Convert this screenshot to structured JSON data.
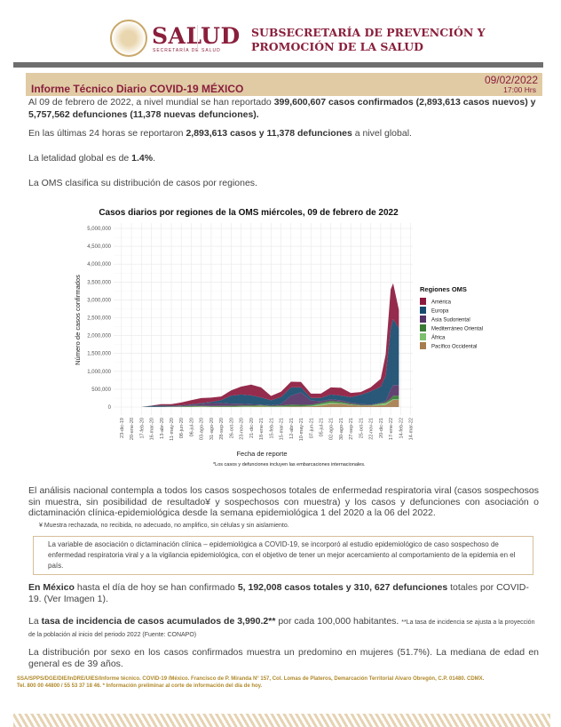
{
  "header": {
    "brand": "SALUD",
    "brand_sub": "SECRETARÍA DE SALUD",
    "subsecretaria_line1": "SUBSECRETARÍA DE PREVENCIÓN Y",
    "subsecretaria_line2": "PROMOCIÓN DE LA SALUD"
  },
  "report": {
    "title": "Informe Técnico Diario COVID-19 MÉXICO",
    "date": "09/02/2022",
    "time": "17:00 Hrs"
  },
  "paragraphs": {
    "p1_a": "Al 09 de febrero de 2022, a nivel mundial se han reportado ",
    "p1_b": "399,600,607 casos confirmados (2,893,613 casos nuevos) y 5,757,562 defunciones (11,378 nuevas defunciones).",
    "p2_a": "En las últimas 24 horas se reportaron ",
    "p2_b": "2,893,613 casos y 11,378 defunciones",
    "p2_c": " a nivel global.",
    "p3_a": "La letalidad global es de ",
    "p3_b": "1.4%",
    "p3_c": ".",
    "p4": "La OMS clasifica su distribución de casos por regiones.",
    "p5": "El análisis nacional contempla a todos los casos sospechosos totales de enfermedad respiratoria viral (casos sospechosos sin muestra, sin posibilidad de resultado¥ y sospechosos con muestra) y los casos y defunciones con asociación o dictaminación clínica-epidemiológica desde la semana epidemiológica 1 del 2020 a la 06 del 2022.",
    "p5_note": "¥ Muestra rechazada, no recibida, no adecuado, no amplifico, sin células y sin aislamiento.",
    "box": "La variable de asociación o dictaminación clínica – epidemiológica a COVID-19, se incorporó al estudio epidemiológico de caso sospechoso de enfermedad respiratoria viral y a la vigilancia epidemiológica, con el objetivo de tener un mejor acercamiento al comportamiento de la epidemia en el país.",
    "p6_a": "En México",
    "p6_b": " hasta el día de hoy se han confirmado ",
    "p6_c": "5, 192,008 casos totales y 310, 627 defunciones",
    "p6_d": " totales por COVID-19. (Ver Imagen 1).",
    "p7_a": "La ",
    "p7_b": "tasa de incidencia de casos acumulados de 3,990.2**",
    "p7_c": " por cada 100,000 habitantes. ",
    "p7_note": "**La tasa de incidencia se ajusta a la proyección de la población al inicio del periodo 2022 (Fuente: CONAPO)",
    "p8": "La distribución por sexo en los casos confirmados muestra un predomino en mujeres (51.7%). La mediana de edad en general es de 39 años."
  },
  "footer": {
    "line1": "SSA/SPPS/DGE/DIE/InDRE/UIES/Informe técnico. COVID-19 /México. Francisco de P. Miranda N° 157, Col. Lomas de Plateros, Demarcación Territorial Alvaro Obregón, C.P. 01480. CDMX.",
    "line2": "Tel. 800 00 44800 / 55 53 37 18 46. * Información preliminar al corte de información del día de hoy."
  },
  "chart_data": {
    "type": "area",
    "stacked": true,
    "title": "Casos diarios por regiones de la OMS miércoles, 09 de febrero de 2022",
    "xlabel": "Fecha de reporte",
    "ylabel": "Número de casos confirmados",
    "note": "*Los casos y defunciones incluyen las embarcaciones internacionales.",
    "legend_title": "Regiones OMS",
    "legend_position": "right",
    "grid": true,
    "ylim": [
      0,
      5000000
    ],
    "yticks": [
      0,
      500000,
      1000000,
      1500000,
      2000000,
      2500000,
      3000000,
      3500000,
      4000000,
      4500000,
      5000000
    ],
    "ytick_labels": [
      "0",
      "500,000",
      "1,000,000",
      "1,500,000",
      "2,000,000",
      "2,500,000",
      "3,000,000",
      "3,500,000",
      "4,000,000",
      "4,500,000",
      "5,000,000"
    ],
    "xlim": [
      "2019-12-01",
      "2022-03-20"
    ],
    "xticks": [
      "2019-12-23",
      "2020-01-20",
      "2020-02-17",
      "2020-03-16",
      "2020-04-13",
      "2020-05-11",
      "2020-06-08",
      "2020-07-06",
      "2020-08-03",
      "2020-08-31",
      "2020-09-28",
      "2020-10-26",
      "2020-11-23",
      "2020-12-21",
      "2021-01-18",
      "2021-02-15",
      "2021-03-15",
      "2021-04-12",
      "2021-05-10",
      "2021-06-07",
      "2021-07-05",
      "2021-08-02",
      "2021-08-30",
      "2021-09-27",
      "2021-10-25",
      "2021-11-22",
      "2021-12-20",
      "2022-01-17",
      "2022-02-14",
      "2022-03-14"
    ],
    "xtick_labels": [
      "23-dic-19",
      "20-ene-20",
      "17-feb-20",
      "16-mar-20",
      "13-abr-20",
      "11-may-20",
      "08-jun-20",
      "06-jul-20",
      "03-ago-20",
      "31-ago-20",
      "28-sep-20",
      "26-oct-20",
      "23-nov-20",
      "21-dic-20",
      "18-ene-21",
      "15-feb-21",
      "15-mar-21",
      "12-abr-21",
      "10-may-21",
      "07-jun-21",
      "05-jul-21",
      "02-ago-21",
      "30-ago-21",
      "27-sep-21",
      "25-oct-21",
      "22-nov-21",
      "20-dic-21",
      "17-ene-22",
      "14-feb-22",
      "14-mar-22"
    ],
    "x": [
      "2020-02-17",
      "2020-03-16",
      "2020-04-13",
      "2020-05-11",
      "2020-06-08",
      "2020-07-06",
      "2020-08-03",
      "2020-08-31",
      "2020-09-28",
      "2020-10-26",
      "2020-11-23",
      "2020-12-21",
      "2021-01-18",
      "2021-02-15",
      "2021-03-15",
      "2021-04-12",
      "2021-05-10",
      "2021-06-07",
      "2021-07-05",
      "2021-08-02",
      "2021-08-30",
      "2021-09-27",
      "2021-10-25",
      "2021-11-22",
      "2021-12-20",
      "2022-01-03",
      "2022-01-17",
      "2022-01-24",
      "2022-02-09"
    ],
    "series": [
      {
        "name": "Pacífico Occidental",
        "color": "#a67c4e",
        "values": [
          2000,
          2000,
          2000,
          2000,
          2000,
          3000,
          6000,
          5000,
          4000,
          5000,
          8000,
          10000,
          14000,
          8000,
          6000,
          12000,
          15000,
          20000,
          40000,
          90000,
          90000,
          60000,
          40000,
          40000,
          50000,
          60000,
          150000,
          200000,
          200000
        ]
      },
      {
        "name": "África",
        "color": "#7cbf6e",
        "values": [
          0,
          0,
          1000,
          2000,
          4000,
          10000,
          14000,
          8000,
          6000,
          6000,
          8000,
          12000,
          20000,
          8000,
          8000,
          8000,
          6000,
          15000,
          40000,
          35000,
          20000,
          10000,
          6000,
          6000,
          40000,
          50000,
          30000,
          25000,
          15000
        ]
      },
      {
        "name": "Mediterráneo Oriental",
        "color": "#3b7a35",
        "values": [
          0,
          3000,
          5000,
          8000,
          15000,
          18000,
          15000,
          15000,
          20000,
          25000,
          30000,
          25000,
          18000,
          20000,
          30000,
          50000,
          40000,
          30000,
          35000,
          50000,
          40000,
          25000,
          15000,
          12000,
          15000,
          25000,
          60000,
          90000,
          100000
        ]
      },
      {
        "name": "Asia Sudoriental",
        "color": "#553366",
        "values": [
          0,
          500,
          2000,
          6000,
          12000,
          25000,
          55000,
          85000,
          85000,
          60000,
          45000,
          30000,
          18000,
          14000,
          35000,
          250000,
          350000,
          120000,
          50000,
          45000,
          40000,
          30000,
          20000,
          15000,
          15000,
          40000,
          250000,
          300000,
          300000
        ]
      },
      {
        "name": "Europa",
        "color": "#174a6e",
        "values": [
          0,
          30000,
          35000,
          20000,
          15000,
          18000,
          20000,
          30000,
          80000,
          220000,
          260000,
          250000,
          200000,
          140000,
          200000,
          230000,
          140000,
          70000,
          90000,
          130000,
          130000,
          150000,
          260000,
          370000,
          450000,
          700000,
          1700000,
          1850000,
          1600000
        ]
      },
      {
        "name": "América",
        "color": "#8c1a3e",
        "values": [
          0,
          5000,
          35000,
          45000,
          80000,
          120000,
          140000,
          120000,
          100000,
          150000,
          220000,
          300000,
          280000,
          120000,
          150000,
          160000,
          150000,
          120000,
          120000,
          200000,
          220000,
          120000,
          80000,
          110000,
          220000,
          600000,
          1100000,
          1000000,
          500000
        ]
      }
    ]
  }
}
